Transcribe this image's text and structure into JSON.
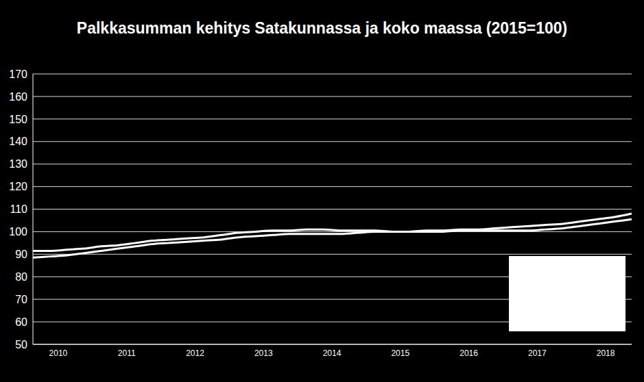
{
  "chart_data": {
    "type": "line",
    "title": "Palkkasumman kehitys Satakunnassa ja koko maassa (2015=100)",
    "categories": [
      null,
      "2010",
      null,
      null,
      null,
      "2011",
      null,
      null,
      null,
      "2012",
      null,
      null,
      null,
      "2013",
      null,
      null,
      null,
      "2014",
      null,
      null,
      null,
      "2015",
      null,
      null,
      null,
      "2016",
      null,
      null,
      null,
      "2017",
      null,
      null,
      null,
      "2018",
      null,
      null
    ],
    "series": [
      {
        "color": "#ffffff",
        "values": [
          91.5,
          91.5,
          92,
          92.5,
          93.5,
          94,
          95,
          96,
          96.5,
          97,
          97.5,
          98.5,
          99.5,
          100,
          100.5,
          100.5,
          101,
          101,
          100.5,
          100.5,
          100.5,
          100,
          100,
          100,
          100,
          100.5,
          100.5,
          100.5,
          100.5,
          100.5,
          101,
          101.5,
          102.5,
          103.5,
          104.5,
          105.5
        ]
      },
      {
        "color": "#ffffff",
        "values": [
          88.5,
          89,
          89.5,
          90.5,
          91.5,
          92.5,
          93.5,
          94.5,
          95,
          95.5,
          96,
          96.5,
          97.5,
          98,
          98.5,
          99,
          99,
          99,
          99,
          99.5,
          100,
          100,
          100,
          100.5,
          100.5,
          101,
          101,
          101.5,
          102,
          102.5,
          103,
          103.5,
          104.5,
          105.5,
          106.5,
          108
        ]
      }
    ],
    "ylim": [
      50,
      170
    ],
    "yticks": [
      50,
      60,
      70,
      80,
      90,
      100,
      110,
      120,
      130,
      140,
      150,
      160,
      170
    ],
    "grid": true
  }
}
